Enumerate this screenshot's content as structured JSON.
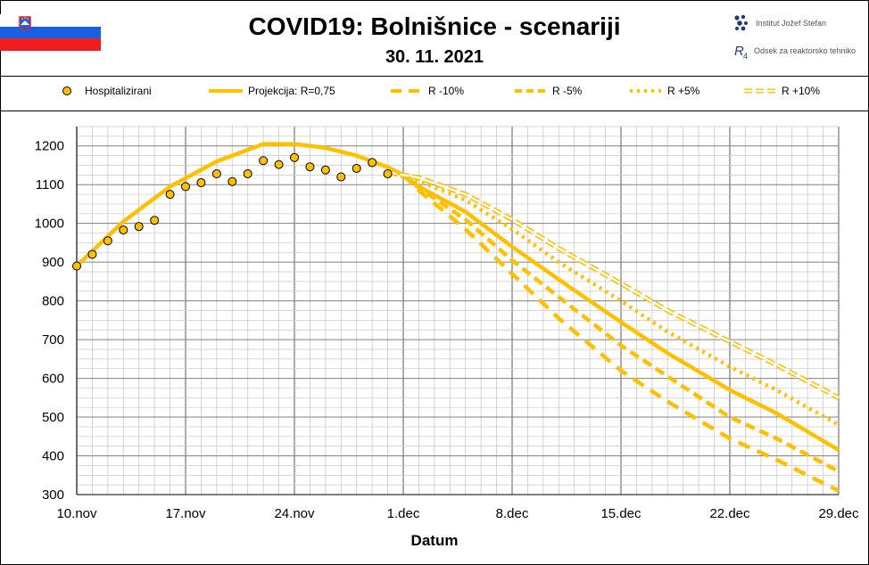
{
  "header": {
    "title": "COVID19: Bolnišnice - scenariji",
    "date": "30. 11. 2021",
    "logo_ijs": "Institut Jožef Stefan",
    "logo_r4": "Odsek za reaktorsko tehniko"
  },
  "colors": {
    "series": "#FFC000",
    "marker_edge": "#000000",
    "grid_major": "#808080",
    "grid_minor": "#c8c8c8"
  },
  "legend": {
    "hosp": "Hospitalizirani",
    "proj": "Projekcija: R=0,75",
    "m10": "R -10%",
    "m5": "R -5%",
    "p5": "R +5%",
    "p10": "R +10%"
  },
  "chart_data": {
    "type": "line",
    "xlabel": "Datum",
    "ylabel": "",
    "ylim": [
      300,
      1250
    ],
    "yticks": [
      300,
      400,
      500,
      600,
      700,
      800,
      900,
      1000,
      1100,
      1200
    ],
    "xlim": [
      0,
      49
    ],
    "xticks": [
      {
        "day": 0,
        "label": "10.nov"
      },
      {
        "day": 7,
        "label": "17.nov"
      },
      {
        "day": 14,
        "label": "24.nov"
      },
      {
        "day": 21,
        "label": "1.dec"
      },
      {
        "day": 28,
        "label": "8.dec"
      },
      {
        "day": 35,
        "label": "15.dec"
      },
      {
        "day": 42,
        "label": "22.dec"
      },
      {
        "day": 49,
        "label": "29.dec"
      }
    ],
    "grid": true,
    "legend_position": "top",
    "observed": {
      "name": "Hospitalizirani",
      "points": [
        [
          0,
          890
        ],
        [
          1,
          920
        ],
        [
          2,
          955
        ],
        [
          3,
          983
        ],
        [
          4,
          992
        ],
        [
          5,
          1008
        ],
        [
          6,
          1075
        ],
        [
          7,
          1095
        ],
        [
          8,
          1105
        ],
        [
          9,
          1128
        ],
        [
          10,
          1108
        ],
        [
          11,
          1128
        ],
        [
          12,
          1162
        ],
        [
          13,
          1152
        ],
        [
          14,
          1170
        ],
        [
          15,
          1146
        ],
        [
          16,
          1138
        ],
        [
          17,
          1120
        ],
        [
          18,
          1142
        ],
        [
          19,
          1157
        ],
        [
          20,
          1128
        ]
      ]
    },
    "series": [
      {
        "name": "Projekcija: R=0,75",
        "style": "solid",
        "points": [
          [
            0,
            890
          ],
          [
            3,
            1005
          ],
          [
            6,
            1095
          ],
          [
            9,
            1160
          ],
          [
            12,
            1205
          ],
          [
            14,
            1205
          ],
          [
            16,
            1195
          ],
          [
            18,
            1175
          ],
          [
            20,
            1145
          ],
          [
            21,
            1125
          ],
          [
            22,
            1095
          ],
          [
            25,
            1030
          ],
          [
            28,
            940
          ],
          [
            31,
            855
          ],
          [
            35,
            745
          ],
          [
            38,
            665
          ],
          [
            42,
            570
          ],
          [
            45,
            510
          ],
          [
            49,
            415
          ]
        ]
      },
      {
        "name": "R -10%",
        "style": "dash",
        "points": [
          [
            21,
            1125
          ],
          [
            22,
            1085
          ],
          [
            25,
            985
          ],
          [
            28,
            870
          ],
          [
            31,
            755
          ],
          [
            35,
            620
          ],
          [
            38,
            540
          ],
          [
            42,
            445
          ],
          [
            45,
            390
          ],
          [
            49,
            310
          ]
        ]
      },
      {
        "name": "R -5%",
        "style": "dash",
        "points": [
          [
            21,
            1125
          ],
          [
            22,
            1092
          ],
          [
            25,
            1010
          ],
          [
            28,
            905
          ],
          [
            31,
            810
          ],
          [
            35,
            685
          ],
          [
            38,
            605
          ],
          [
            42,
            500
          ],
          [
            45,
            445
          ],
          [
            49,
            360
          ]
        ]
      },
      {
        "name": "R +5%",
        "style": "dot",
        "points": [
          [
            20,
            1132
          ],
          [
            22,
            1110
          ],
          [
            25,
            1060
          ],
          [
            28,
            985
          ],
          [
            31,
            900
          ],
          [
            35,
            800
          ],
          [
            38,
            720
          ],
          [
            42,
            630
          ],
          [
            45,
            570
          ],
          [
            49,
            480
          ]
        ]
      },
      {
        "name": "R +10%",
        "style": "double",
        "points": [
          [
            20,
            1132
          ],
          [
            22,
            1118
          ],
          [
            25,
            1075
          ],
          [
            28,
            1010
          ],
          [
            31,
            935
          ],
          [
            35,
            845
          ],
          [
            38,
            775
          ],
          [
            42,
            695
          ],
          [
            45,
            635
          ],
          [
            49,
            550
          ]
        ]
      }
    ]
  }
}
